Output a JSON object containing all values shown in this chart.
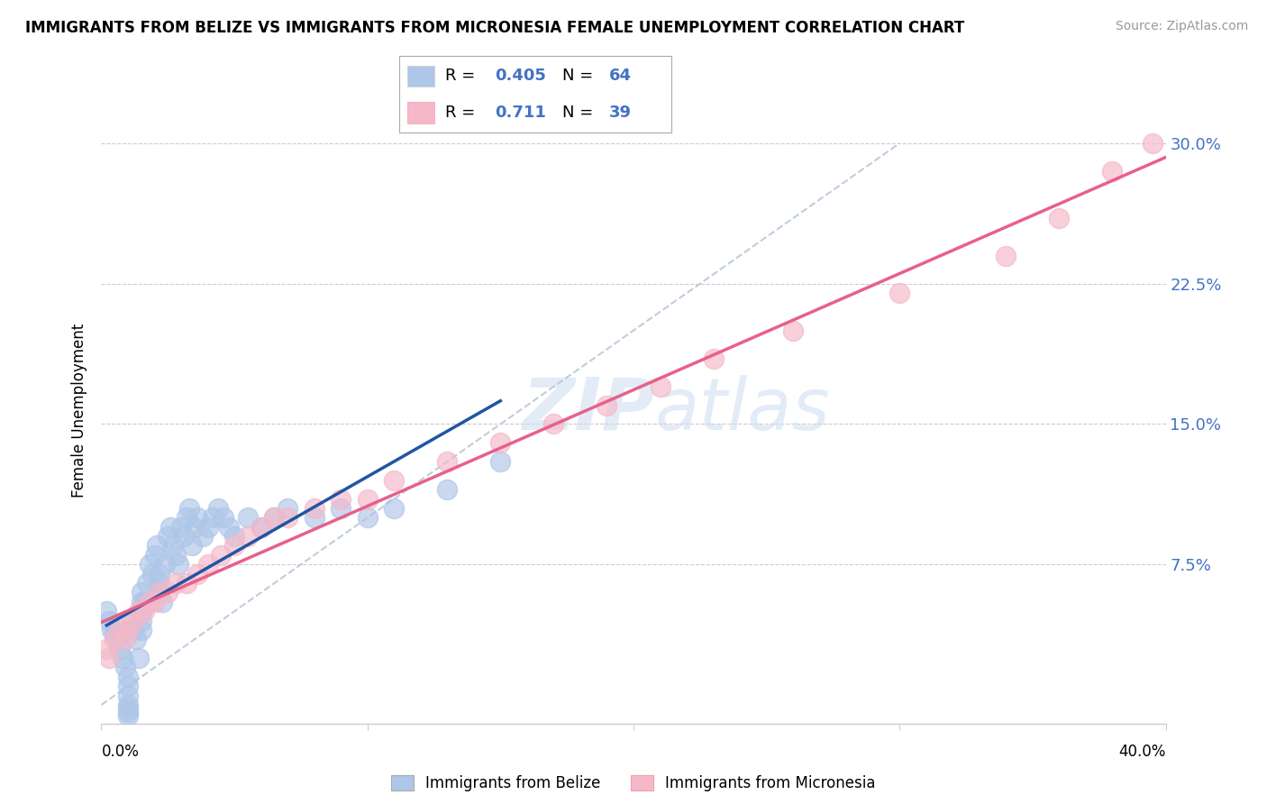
{
  "title": "IMMIGRANTS FROM BELIZE VS IMMIGRANTS FROM MICRONESIA FEMALE UNEMPLOYMENT CORRELATION CHART",
  "source": "Source: ZipAtlas.com",
  "ylabel": "Female Unemployment",
  "y_ticks": [
    0.0,
    0.075,
    0.15,
    0.225,
    0.3
  ],
  "y_tick_labels": [
    "",
    "7.5%",
    "15.0%",
    "22.5%",
    "30.0%"
  ],
  "xlim": [
    0.0,
    0.4
  ],
  "ylim": [
    -0.01,
    0.325
  ],
  "belize_R": 0.405,
  "belize_N": 64,
  "micronesia_R": 0.711,
  "micronesia_N": 39,
  "belize_color": "#aec6e8",
  "micronesia_color": "#f4b8c8",
  "belize_line_color": "#2055a4",
  "micronesia_line_color": "#e8608a",
  "diagonal_color": "#b8c8d8",
  "watermark_zip": "ZIP",
  "watermark_atlas": "atlas",
  "legend_label_belize": "Immigrants from Belize",
  "legend_label_micronesia": "Immigrants from Micronesia",
  "belize_x": [
    0.002,
    0.003,
    0.004,
    0.005,
    0.006,
    0.007,
    0.008,
    0.009,
    0.01,
    0.01,
    0.01,
    0.01,
    0.01,
    0.01,
    0.01,
    0.011,
    0.012,
    0.013,
    0.014,
    0.015,
    0.015,
    0.015,
    0.015,
    0.015,
    0.016,
    0.017,
    0.018,
    0.019,
    0.02,
    0.021,
    0.022,
    0.022,
    0.022,
    0.023,
    0.024,
    0.025,
    0.026,
    0.027,
    0.028,
    0.029,
    0.03,
    0.031,
    0.032,
    0.033,
    0.034,
    0.035,
    0.036,
    0.038,
    0.04,
    0.042,
    0.044,
    0.046,
    0.048,
    0.05,
    0.055,
    0.06,
    0.065,
    0.07,
    0.08,
    0.09,
    0.1,
    0.11,
    0.13,
    0.15
  ],
  "belize_y": [
    0.05,
    0.045,
    0.04,
    0.038,
    0.035,
    0.03,
    0.025,
    0.02,
    0.015,
    0.01,
    0.005,
    0.0,
    -0.002,
    -0.004,
    -0.006,
    0.045,
    0.04,
    0.035,
    0.025,
    0.06,
    0.055,
    0.05,
    0.045,
    0.04,
    0.055,
    0.065,
    0.075,
    0.07,
    0.08,
    0.085,
    0.07,
    0.065,
    0.06,
    0.055,
    0.075,
    0.09,
    0.095,
    0.085,
    0.08,
    0.075,
    0.095,
    0.09,
    0.1,
    0.105,
    0.085,
    0.095,
    0.1,
    0.09,
    0.095,
    0.1,
    0.105,
    0.1,
    0.095,
    0.09,
    0.1,
    0.095,
    0.1,
    0.105,
    0.1,
    0.105,
    0.1,
    0.105,
    0.115,
    0.13
  ],
  "micronesia_x": [
    0.002,
    0.003,
    0.005,
    0.007,
    0.009,
    0.01,
    0.012,
    0.014,
    0.016,
    0.018,
    0.02,
    0.022,
    0.025,
    0.028,
    0.032,
    0.036,
    0.04,
    0.045,
    0.05,
    0.055,
    0.06,
    0.065,
    0.07,
    0.08,
    0.09,
    0.1,
    0.11,
    0.13,
    0.15,
    0.17,
    0.19,
    0.21,
    0.23,
    0.26,
    0.3,
    0.34,
    0.36,
    0.38,
    0.395
  ],
  "micronesia_y": [
    0.03,
    0.025,
    0.035,
    0.04,
    0.035,
    0.04,
    0.045,
    0.05,
    0.05,
    0.055,
    0.055,
    0.06,
    0.06,
    0.065,
    0.065,
    0.07,
    0.075,
    0.08,
    0.085,
    0.09,
    0.095,
    0.1,
    0.1,
    0.105,
    0.11,
    0.11,
    0.12,
    0.13,
    0.14,
    0.15,
    0.16,
    0.17,
    0.185,
    0.2,
    0.22,
    0.24,
    0.26,
    0.285,
    0.3
  ]
}
